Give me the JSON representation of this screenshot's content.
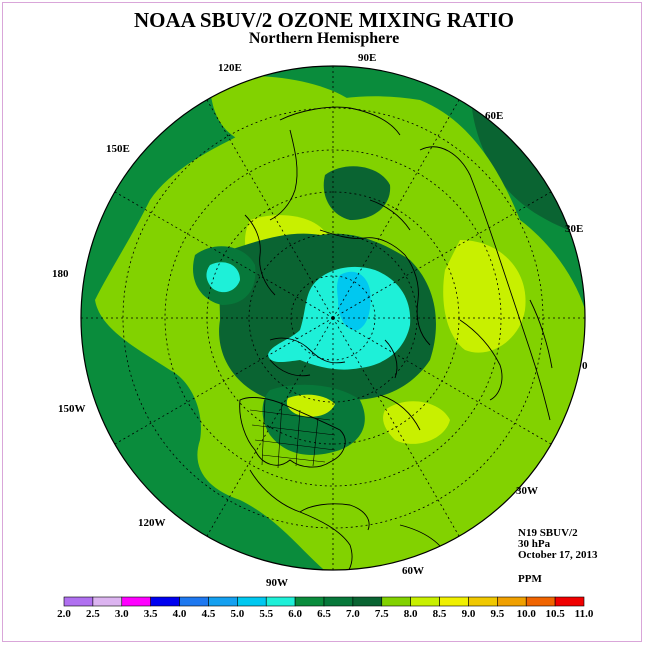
{
  "title": "NOAA SBUV/2 OZONE MIXING RATIO",
  "subtitle": "Northern Hemisphere",
  "longitude_labels": [
    "120E",
    "90E",
    "60E",
    "150E",
    "30E",
    "180",
    "0",
    "150W",
    "30W",
    "120W",
    "60W",
    "90W"
  ],
  "info": {
    "satellite": "N19 SBUV/2",
    "level": "30 hPa",
    "date": "October 17, 2013",
    "units": "PPM"
  },
  "colorbar": {
    "ticks": [
      "2.0",
      "2.5",
      "3.0",
      "3.5",
      "4.0",
      "4.5",
      "5.0",
      "5.5",
      "6.0",
      "6.5",
      "7.0",
      "7.5",
      "8.0",
      "8.5",
      "9.0",
      "9.5",
      "10.0",
      "10.5",
      "11.0"
    ],
    "colors": [
      "#b070f0",
      "#dcb4f0",
      "#ff00ff",
      "#0000f0",
      "#1e78f0",
      "#14a0f0",
      "#00c8f0",
      "#1ef0d8",
      "#0a8c3c",
      "#07783a",
      "#0a6432",
      "#82d200",
      "#c8f000",
      "#f0f000",
      "#f0c800",
      "#f0a000",
      "#f06400",
      "#f00000",
      "#78503c"
    ]
  },
  "map_colors": {
    "level_6_0": "#0a8c3c",
    "level_6_5": "#07783a",
    "level_7_0": "#0a6432",
    "level_7_5": "#82d200",
    "level_8_0": "#c8f000",
    "level_8_5": "#f0f000",
    "level_5_5": "#1ef0d8",
    "level_5_0": "#00c8f0"
  }
}
